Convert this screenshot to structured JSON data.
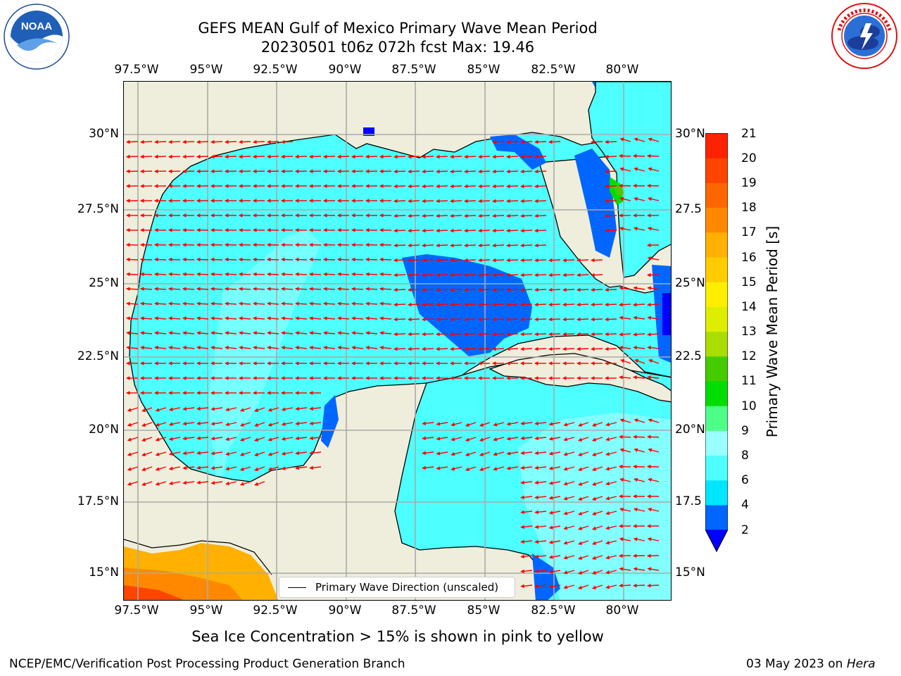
{
  "title": {
    "line1": "GEFS MEAN Gulf of Mexico Primary Wave Mean Period",
    "line2": "20230501 t06z 072h fcst   Max: 19.46"
  },
  "logos": {
    "left": {
      "name": "noaa-logo",
      "text": "NOAA"
    },
    "right": {
      "name": "nws-logo"
    }
  },
  "map": {
    "lon_ticks_top": [
      "97.5°W",
      "95°W",
      "92.5°W",
      "90°W",
      "87.5°W",
      "85°W",
      "82.5°W",
      "80°W"
    ],
    "lon_ticks_bottom": [
      "97.5°W",
      "95°W",
      "92.5°W",
      "90°W",
      "87.5°W",
      "85°W",
      "82.5°W",
      "80°W"
    ],
    "lat_ticks_left": [
      "30°N",
      "27.5°N",
      "25°N",
      "22.5°N",
      "20°N",
      "17.5°N",
      "15°N"
    ],
    "lat_ticks_right": [
      "30°N",
      "27.5",
      "25°N",
      "22.5",
      "20°N",
      "17.5",
      "15°N"
    ],
    "lon_range": [
      -98.1,
      -78.3
    ],
    "lat_range": [
      14.0,
      31.8
    ],
    "land_color": "#efeedc",
    "grid": true,
    "legend_label": "Primary Wave Direction (unscaled)",
    "arrow_color": "#ff0000"
  },
  "colorbar": {
    "title": "Primary Wave Mean Period [s]",
    "tick_labels": [
      "21",
      "20",
      "19",
      "18",
      "17",
      "16",
      "15",
      "14",
      "13",
      "12",
      "11",
      "10",
      "9",
      "8",
      "6",
      "4",
      "2"
    ],
    "levels": [
      2,
      4,
      6,
      8,
      9,
      10,
      11,
      12,
      13,
      14,
      15,
      16,
      17,
      18,
      19,
      20,
      21
    ],
    "colors": [
      "#0066ff",
      "#00e6ff",
      "#4dffff",
      "#99ffff",
      "#4dff88",
      "#00dd00",
      "#44cc00",
      "#aadd00",
      "#ddee00",
      "#ffee00",
      "#ffcc00",
      "#ffb000",
      "#ff8800",
      "#ff6600",
      "#ff4400",
      "#ff2200"
    ],
    "under_color": "#0000ff"
  },
  "notes": {
    "sea_ice": "Sea Ice Concentration > 15% is shown in pink to yellow"
  },
  "footer": {
    "left": "NCEP/EMC/Verification Post Processing Product Generation Branch",
    "right_date": "03 May 2023 on ",
    "right_host": "Hera"
  }
}
